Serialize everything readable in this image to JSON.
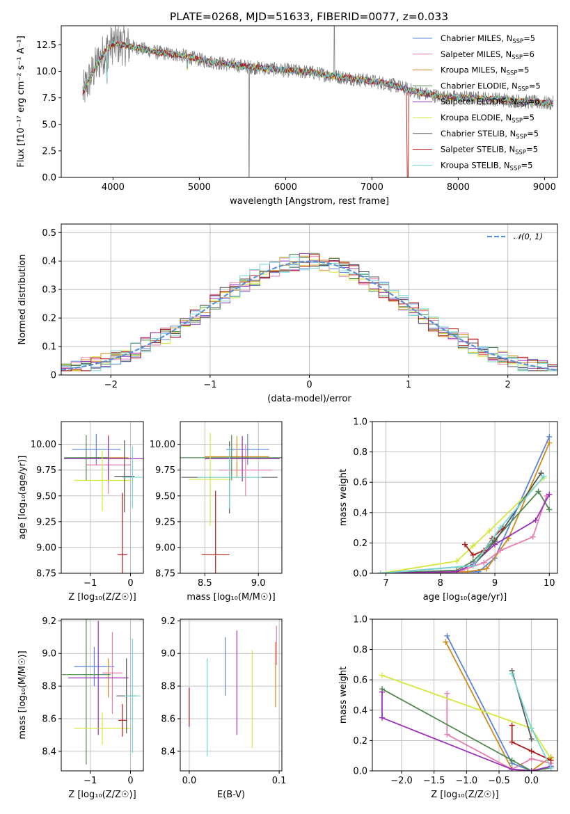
{
  "header": {
    "title": "PLATE=0268, MJD=51633, FIBERID=0077, z=0.033"
  },
  "legend": {
    "spectrum": [
      {
        "name": "Chabrier MILES, N",
        "sub": "SSP",
        "suffix": "=5",
        "color": "#5b84d6"
      },
      {
        "name": "Salpeter MILES, N",
        "sub": "SSP",
        "suffix": "=6",
        "color": "#e67fb0"
      },
      {
        "name": "Kroupa MILES, N",
        "sub": "SSP",
        "suffix": "=5",
        "color": "#d08a1a"
      },
      {
        "name": "Chabrier ELODIE, N",
        "sub": "SSP",
        "suffix": "=5",
        "color": "#4f8a4f"
      },
      {
        "name": "Salpeter ELODIE, N",
        "sub": "SSP",
        "suffix": "=6",
        "color": "#9a2fb8"
      },
      {
        "name": "Kroupa ELODIE, N",
        "sub": "SSP",
        "suffix": "=5",
        "color": "#d5e83a"
      },
      {
        "name": "Chabrier STELIB, N",
        "sub": "SSP",
        "suffix": "=5",
        "color": "#555555"
      },
      {
        "name": "Salpeter STELIB, N",
        "sub": "SSP",
        "suffix": "=5",
        "color": "#b01717"
      },
      {
        "name": "Kroupa STELIB, N",
        "sub": "SSP",
        "suffix": "=5",
        "color": "#73d6d6"
      }
    ],
    "resid": {
      "label": "𝒩(0, 1)",
      "color": "#5b8fd6"
    }
  },
  "chart_data": [
    {
      "id": "spectrum",
      "type": "line",
      "xlabel": "wavelength [Angstrom, rest frame]",
      "ylabel": "Flux [f10⁻¹⁷ erg cm⁻² s⁻¹ A⁻¹]",
      "xlim": [
        3400,
        9150
      ],
      "ylim": [
        0,
        14.3
      ],
      "xticks": [
        4000,
        5000,
        6000,
        7000,
        8000,
        9000
      ],
      "yticks": [
        0.0,
        2.5,
        5.0,
        7.5,
        10.0,
        12.5
      ],
      "xrange": [
        3650,
        9100
      ],
      "continuum": {
        "x": [
          3650,
          3700,
          3800,
          3900,
          4000,
          4100,
          4300,
          4500,
          4800,
          5000,
          5300,
          5600,
          6000,
          6300,
          6600,
          6900,
          7200,
          7500,
          7800,
          8100,
          8400,
          8700,
          9000,
          9100
        ],
        "y": [
          8.0,
          8.8,
          10.5,
          11.8,
          12.6,
          12.5,
          12.2,
          11.8,
          11.5,
          11.1,
          10.7,
          10.4,
          10.1,
          9.9,
          9.5,
          9.2,
          8.8,
          8.1,
          7.6,
          7.5,
          7.4,
          7.2,
          7.0,
          7.0
        ]
      }
    },
    {
      "id": "residuals",
      "type": "step",
      "xlabel": "(data-model)/error",
      "ylabel": "Normed distribution",
      "xlim": [
        -2.5,
        2.5
      ],
      "ylim": [
        0,
        0.53
      ],
      "xticks": [
        -2,
        -1,
        0,
        1,
        2
      ],
      "yticks": [
        0.0,
        0.1,
        0.2,
        0.3,
        0.4,
        0.5
      ],
      "bin_width": 0.1,
      "bin_start": -2.5,
      "seed_series": 9,
      "reference": {
        "name": "𝒩(0, 1)",
        "mean": 0,
        "sigma": 1
      }
    },
    {
      "id": "age_vs_Z",
      "type": "errorbar",
      "xlabel": "Z [log₁₀(Z/Z☉)]",
      "ylabel": "age  [log₁₀(age/yr)]",
      "xlim": [
        -1.72,
        0.32
      ],
      "ylim": [
        8.75,
        10.22
      ],
      "xticks": [
        -1,
        0
      ],
      "yticks": [
        8.75,
        9.0,
        9.25,
        9.5,
        9.75,
        10.0
      ],
      "points": [
        {
          "x": -0.85,
          "y": 9.95,
          "xe": 0.6,
          "ye": 0.15,
          "c": "#5b84d6"
        },
        {
          "x": -0.55,
          "y": 9.8,
          "xe": 0.55,
          "ye": 0.28,
          "c": "#e67fb0"
        },
        {
          "x": -0.55,
          "y": 9.87,
          "xe": 0.5,
          "ye": 0.22,
          "c": "#d08a1a"
        },
        {
          "x": -1.1,
          "y": 9.87,
          "xe": 0.55,
          "ye": 0.22,
          "c": "#4f8a4f"
        },
        {
          "x": -0.55,
          "y": 9.86,
          "xe": 1.1,
          "ye": 0.22,
          "c": "#9a2fb8"
        },
        {
          "x": -0.7,
          "y": 9.65,
          "xe": 0.7,
          "ye": 0.3,
          "c": "#d5e83a"
        },
        {
          "x": -0.15,
          "y": 9.69,
          "xe": 0.25,
          "ye": 0.35,
          "c": "#555555"
        },
        {
          "x": -0.2,
          "y": 8.93,
          "xe": 0.12,
          "ye": 0.6,
          "c": "#b01717"
        },
        {
          "x": 0.05,
          "y": 9.68,
          "xe": 0.25,
          "ye": 0.3,
          "c": "#73d6d6"
        }
      ]
    },
    {
      "id": "age_vs_mass",
      "type": "errorbar",
      "xlabel": "mass [log₁₀(M/M☉)]",
      "ylabel": "",
      "xlim": [
        8.27,
        9.22
      ],
      "ylim": [
        8.75,
        10.22
      ],
      "xticks": [
        8.5,
        9.0
      ],
      "yticks": [
        8.75,
        9.0,
        9.25,
        9.5,
        9.75,
        10.0
      ],
      "points": [
        {
          "x": 8.9,
          "y": 9.95,
          "xe": 0.2,
          "ye": 0.15,
          "c": "#5b84d6"
        },
        {
          "x": 8.88,
          "y": 9.75,
          "xe": 0.25,
          "ye": 0.25,
          "c": "#e67fb0"
        },
        {
          "x": 8.8,
          "y": 9.88,
          "xe": 0.3,
          "ye": 0.2,
          "c": "#d08a1a"
        },
        {
          "x": 8.75,
          "y": 9.87,
          "xe": 0.5,
          "ye": 0.22,
          "c": "#4f8a4f"
        },
        {
          "x": 8.85,
          "y": 9.86,
          "xe": 0.35,
          "ye": 0.22,
          "c": "#9a2fb8"
        },
        {
          "x": 8.55,
          "y": 9.66,
          "xe": 0.2,
          "ye": 0.45,
          "c": "#d5e83a"
        },
        {
          "x": 8.73,
          "y": 9.68,
          "xe": 0.45,
          "ye": 0.35,
          "c": "#555555"
        },
        {
          "x": 8.6,
          "y": 8.93,
          "xe": 0.13,
          "ye": 0.62,
          "c": "#b01717"
        },
        {
          "x": 8.73,
          "y": 9.68,
          "xe": 0.3,
          "ye": 0.3,
          "c": "#73d6d6"
        }
      ]
    },
    {
      "id": "weight_vs_age",
      "type": "line",
      "xlabel": "age  [log₁₀(age/yr)]",
      "ylabel": "mass weight",
      "xlim": [
        6.75,
        10.15
      ],
      "ylim": [
        0,
        1.0
      ],
      "xticks": [
        7,
        8,
        9,
        10
      ],
      "yticks": [
        0.0,
        0.2,
        0.4,
        0.6,
        0.8,
        1.0
      ],
      "series": [
        {
          "c": "#5b84d6",
          "x": [
            6.9,
            8.7,
            9.0,
            10.0
          ],
          "y": [
            0.0,
            0.01,
            0.1,
            0.9
          ]
        },
        {
          "c": "#d08a1a",
          "x": [
            6.9,
            8.5,
            8.85,
            9.25,
            10.0
          ],
          "y": [
            0.0,
            0.01,
            0.03,
            0.23,
            0.86
          ]
        },
        {
          "c": "#e67fb0",
          "x": [
            6.9,
            8.4,
            8.8,
            9.1,
            9.7,
            9.95
          ],
          "y": [
            0.0,
            0.02,
            0.07,
            0.15,
            0.24,
            0.51
          ]
        },
        {
          "c": "#4f8a4f",
          "x": [
            6.9,
            8.3,
            8.6,
            9.0,
            9.8,
            10.0
          ],
          "y": [
            0.0,
            0.02,
            0.08,
            0.22,
            0.54,
            0.42
          ]
        },
        {
          "c": "#9a2fb8",
          "x": [
            6.9,
            8.3,
            8.6,
            9.0,
            9.75,
            10.0
          ],
          "y": [
            0.0,
            0.01,
            0.06,
            0.19,
            0.35,
            0.52
          ]
        },
        {
          "c": "#d5e83a",
          "x": [
            6.9,
            8.3,
            8.6,
            8.9,
            9.9
          ],
          "y": [
            0.0,
            0.08,
            0.18,
            0.28,
            0.63
          ]
        },
        {
          "c": "#555555",
          "x": [
            6.9,
            8.6,
            9.0,
            9.85
          ],
          "y": [
            0.0,
            0.05,
            0.21,
            0.66
          ]
        },
        {
          "c": "#b01717",
          "x": [
            8.45,
            8.6,
            8.8,
            8.95,
            9.15
          ],
          "y": [
            0.19,
            0.12,
            0.15,
            0.23,
            0.3
          ]
        },
        {
          "c": "#73d6d6",
          "x": [
            6.9,
            8.6,
            9.1,
            9.9
          ],
          "y": [
            0.0,
            0.05,
            0.3,
            0.64
          ]
        }
      ]
    },
    {
      "id": "mass_vs_Z",
      "type": "errorbar",
      "xlabel": "Z [log₁₀(Z/Z☉)]",
      "ylabel": "mass [log₁₀(M/M☉)]",
      "xlim": [
        -1.72,
        0.32
      ],
      "ylim": [
        8.28,
        9.21
      ],
      "xticks": [
        -1,
        0
      ],
      "yticks": [
        8.4,
        8.6,
        8.8,
        9.0,
        9.2
      ],
      "points": [
        {
          "x": -0.9,
          "y": 8.92,
          "xe": 0.5,
          "ye": 0.12,
          "c": "#5b84d6"
        },
        {
          "x": -0.45,
          "y": 8.88,
          "xe": 0.25,
          "ye": 0.25,
          "c": "#e67fb0"
        },
        {
          "x": -0.55,
          "y": 8.85,
          "xe": 0.05,
          "ye": 0.12,
          "c": "#d08a1a"
        },
        {
          "x": -1.1,
          "y": 8.87,
          "xe": 0.6,
          "ye": 0.55,
          "c": "#4f8a4f"
        },
        {
          "x": -0.8,
          "y": 8.85,
          "xe": 0.75,
          "ye": 0.35,
          "c": "#9a2fb8"
        },
        {
          "x": -0.7,
          "y": 8.54,
          "xe": 0.7,
          "ye": 0.1,
          "c": "#d5e83a"
        },
        {
          "x": -0.1,
          "y": 8.74,
          "xe": 0.25,
          "ye": 0.23,
          "c": "#555555"
        },
        {
          "x": -0.2,
          "y": 8.59,
          "xe": 0.1,
          "ye": 0.1,
          "c": "#b01717"
        },
        {
          "x": 0.05,
          "y": 8.74,
          "xe": 0.2,
          "ye": 0.35,
          "c": "#73d6d6"
        }
      ]
    },
    {
      "id": "mass_vs_ebv",
      "type": "errorbar",
      "xlabel": "E(B-V)",
      "ylabel": "",
      "xlim": [
        -0.01,
        0.103
      ],
      "ylim": [
        8.28,
        9.21
      ],
      "xticks": [
        0.0,
        0.1
      ],
      "yticks": [
        8.4,
        8.6,
        8.8,
        9.0,
        9.2
      ],
      "points": [
        {
          "x": 0.0,
          "y": 8.67,
          "xe": 0,
          "ye": 0.12,
          "c": "#b01717"
        },
        {
          "x": 0.02,
          "y": 8.67,
          "xe": 0,
          "ye": 0.3,
          "c": "#73d6d6"
        },
        {
          "x": 0.04,
          "y": 8.92,
          "xe": 0,
          "ye": 0.18,
          "c": "#5b84d6"
        },
        {
          "x": 0.053,
          "y": 8.82,
          "xe": 0,
          "ye": 0.32,
          "c": "#9a2fb8"
        },
        {
          "x": 0.07,
          "y": 8.72,
          "xe": 0,
          "ye": 0.3,
          "c": "#d5e83a"
        },
        {
          "x": 0.096,
          "y": 8.87,
          "xe": 0,
          "ye": 0.2,
          "c": "#d08a1a"
        },
        {
          "x": 0.097,
          "y": 9.05,
          "xe": 0,
          "ye": 0.12,
          "c": "#e67fb0"
        }
      ]
    },
    {
      "id": "weight_vs_Z",
      "type": "line",
      "xlabel": "Z [log₁₀(Z/Z☉)]",
      "ylabel": "mass weight",
      "xlim": [
        -2.45,
        0.4
      ],
      "ylim": [
        0,
        1.0
      ],
      "xticks": [
        -2.0,
        -1.5,
        -1.0,
        -0.5,
        0.0
      ],
      "yticks": [
        0.0,
        0.2,
        0.4,
        0.6,
        0.8,
        1.0
      ],
      "series": [
        {
          "c": "#5b84d6",
          "x": [
            -1.3,
            -0.3,
            0.0,
            0.3
          ],
          "y": [
            0.89,
            0.05,
            0.0,
            0.02
          ]
        },
        {
          "c": "#d08a1a",
          "x": [
            -1.32,
            -0.3,
            0.0,
            0.3
          ],
          "y": [
            0.85,
            0.01,
            0.0,
            0.09
          ]
        },
        {
          "c": "#e67fb0",
          "x": [
            -1.3,
            -1.3,
            -0.3,
            0.0,
            0.3
          ],
          "y": [
            0.51,
            0.24,
            0.01,
            0.08,
            0.05
          ]
        },
        {
          "c": "#4f8a4f",
          "x": [
            -2.3,
            -0.3,
            0.0,
            0.3
          ],
          "y": [
            0.54,
            0.07,
            0.0,
            0.02
          ]
        },
        {
          "c": "#9a2fb8",
          "x": [
            -2.3,
            -2.3,
            -0.3,
            0.0,
            0.3
          ],
          "y": [
            0.52,
            0.35,
            0.01,
            0.0,
            0.03
          ]
        },
        {
          "c": "#d5e83a",
          "x": [
            -2.3,
            0.0,
            0.3
          ],
          "y": [
            0.63,
            0.28,
            0.08
          ]
        },
        {
          "c": "#555555",
          "x": [
            -0.3,
            0.0
          ],
          "y": [
            0.66,
            0.21
          ]
        },
        {
          "c": "#b01717",
          "x": [
            -0.3,
            -0.3,
            0.0,
            0.3
          ],
          "y": [
            0.3,
            0.19,
            0.13,
            0.07
          ]
        },
        {
          "c": "#73d6d6",
          "x": [
            -0.3,
            0.0,
            0.3
          ],
          "y": [
            0.64,
            0.28,
            0.02
          ]
        }
      ]
    }
  ]
}
